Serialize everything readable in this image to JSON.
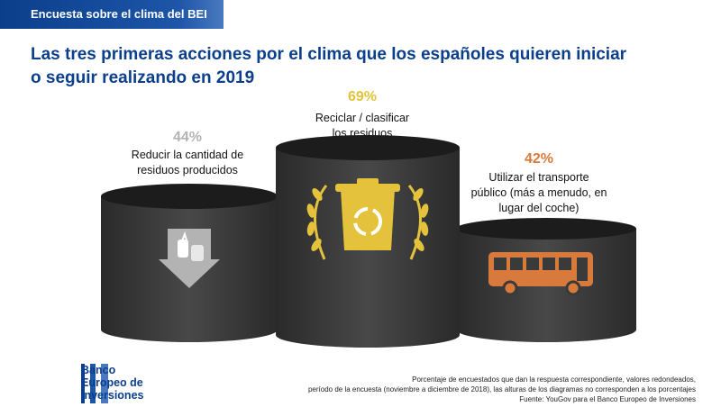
{
  "banner": "Encuesta sobre el clima del BEI",
  "title_line1": "Las tres primeras acciones por el clima que los españoles quieren iniciar",
  "title_line2": "o seguir realizando en 2019",
  "colors": {
    "brand_blue": "#0b3f8c",
    "podium_dark": "#3a3a3a",
    "podium_top": "#1c1c1c",
    "left_accent": "#b3b3b3",
    "center_accent": "#e5c23b",
    "right_accent": "#d87a3b"
  },
  "chart_data": {
    "type": "bar",
    "title": "Las tres primeras acciones por el clima que los españoles quieren iniciar o seguir realizando en 2019",
    "categories": [
      "Reducir la cantidad de residuos producidos",
      "Reciclar / clasificar los residuos",
      "Utilizar el transporte público (más a menudo, en lugar del coche)"
    ],
    "values": [
      44,
      69,
      42
    ],
    "value_labels": [
      "44%",
      "69%",
      "42%"
    ],
    "label_lines": [
      [
        "Reducir la cantidad de",
        "residuos producidos"
      ],
      [
        "Reciclar / clasificar",
        "los residuos"
      ],
      [
        "Utilizar el transporte",
        "público (más a menudo, en",
        "lugar del coche)"
      ]
    ],
    "icons": [
      "recycle-arrow-down-icon",
      "recycling-bin-laurel-icon",
      "bus-icon"
    ]
  },
  "logo": {
    "line1": "Banco",
    "line2": "Europeo de",
    "line3": "Inversiones"
  },
  "footer": {
    "line1": "Porcentaje de encuestados que dan la respuesta correspondiente, valores redondeados,",
    "line2": "período de la encuesta (noviembre a diciembre de 2018), las alturas de los diagramas no corresponden a los porcentajes",
    "line3": "Fuente: YouGov para el Banco Europeo de Inversiones"
  }
}
